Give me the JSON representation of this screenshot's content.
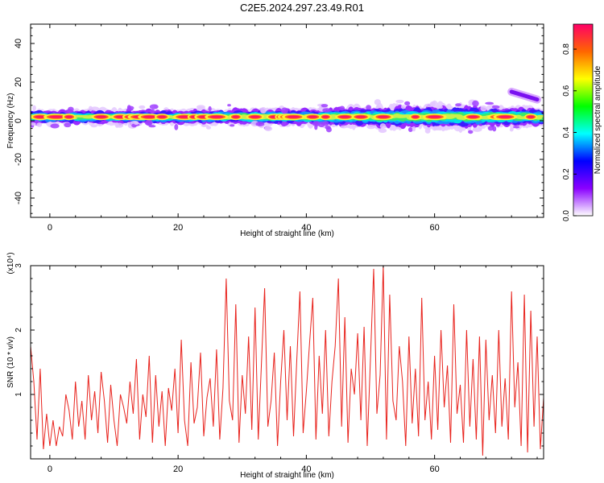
{
  "title": "C2E5.2024.297.23.49.R01",
  "chart_data": [
    {
      "type": "heatmap",
      "xlabel": "Height of straight line (km)",
      "ylabel": "Frequency (Hz)",
      "xlim": [
        -3,
        77
      ],
      "ylim": [
        -50,
        50
      ],
      "xticks": [
        0,
        20,
        40,
        60
      ],
      "yticks": [
        -40,
        -20,
        0,
        20,
        40
      ],
      "colorbar": {
        "label": "Normalized spectral amplitude",
        "range": [
          0.0,
          0.92
        ],
        "ticks": [
          "0.0",
          "0.2",
          "0.4",
          "0.6",
          "0.8"
        ],
        "colors": [
          "#ffffff",
          "#8a00ff",
          "#0000ff",
          "#00ffff",
          "#00ff00",
          "#ffff00",
          "#ff6600",
          "#ff0066"
        ]
      },
      "band": {
        "center_freq_hz": 2,
        "halfwidth_hz": [
          [
            -3,
            3
          ],
          [
            0,
            3
          ],
          [
            10,
            3
          ],
          [
            20,
            3
          ],
          [
            30,
            3.5
          ],
          [
            40,
            3.5
          ],
          [
            50,
            4.5
          ],
          [
            60,
            5
          ],
          [
            65,
            5
          ],
          [
            70,
            4
          ],
          [
            77,
            4
          ]
        ],
        "hotspots_km": [
          -1.5,
          1,
          3,
          8,
          11,
          12.5,
          14,
          15.5,
          17.5,
          21,
          22.5,
          24,
          26,
          29,
          32,
          35,
          36,
          37,
          38,
          41,
          43,
          46,
          48.5,
          52,
          57,
          60,
          66,
          70,
          71,
          75
        ],
        "upper_feature": {
          "x_km": [
            72,
            76
          ],
          "freq_hz": [
            15,
            11
          ]
        }
      }
    },
    {
      "type": "line",
      "xlabel": "Height of straight line (km)",
      "ylabel": "SNR (10 * v/v)",
      "yscale_label": "(x10⁴)",
      "xlim": [
        -3,
        77
      ],
      "ylim": [
        0,
        3
      ],
      "xticks": [
        0,
        20,
        40,
        60
      ],
      "yticks": [
        1,
        2,
        3
      ],
      "series": [
        {
          "color": "#e8221c",
          "x": [
            -3.0,
            -2.5,
            -2.0,
            -1.5,
            -1.0,
            -0.5,
            0.0,
            0.5,
            1.0,
            1.5,
            2.0,
            2.5,
            3.0,
            3.5,
            4.0,
            4.5,
            5.0,
            5.5,
            6.0,
            6.5,
            7.0,
            7.5,
            8.0,
            8.5,
            9.0,
            9.5,
            10.0,
            10.5,
            11.0,
            11.5,
            12.0,
            12.5,
            13.0,
            13.5,
            14.0,
            14.5,
            15.0,
            15.5,
            16.0,
            16.5,
            17.0,
            17.5,
            18.0,
            18.5,
            19.0,
            19.5,
            20.0,
            20.5,
            21.0,
            21.5,
            22.0,
            22.5,
            23.0,
            23.5,
            24.0,
            24.5,
            25.0,
            25.5,
            26.0,
            26.5,
            27.0,
            27.5,
            28.0,
            28.5,
            29.0,
            29.5,
            30.0,
            30.5,
            31.0,
            31.5,
            32.0,
            32.5,
            33.0,
            33.5,
            34.0,
            34.5,
            35.0,
            35.5,
            36.0,
            36.5,
            37.0,
            37.5,
            38.0,
            38.5,
            39.0,
            39.5,
            40.0,
            40.5,
            41.0,
            41.5,
            42.0,
            42.5,
            43.0,
            43.5,
            44.0,
            44.5,
            45.0,
            45.5,
            46.0,
            46.5,
            47.0,
            47.5,
            48.0,
            48.5,
            49.0,
            49.5,
            50.0,
            50.5,
            51.0,
            51.5,
            52.0,
            52.5,
            53.0,
            53.5,
            54.0,
            54.5,
            55.0,
            55.5,
            56.0,
            56.5,
            57.0,
            57.5,
            58.0,
            58.5,
            59.0,
            59.5,
            60.0,
            60.5,
            61.0,
            61.5,
            62.0,
            62.5,
            63.0,
            63.5,
            64.0,
            64.5,
            65.0,
            65.5,
            66.0,
            66.5,
            67.0,
            67.5,
            68.0,
            68.5,
            69.0,
            69.5,
            70.0,
            70.5,
            71.0,
            71.5,
            72.0,
            72.5,
            73.0,
            73.5,
            74.0,
            74.5,
            75.0,
            75.5,
            76.0,
            76.5,
            77.0
          ],
          "y": [
            1.75,
            1.2,
            0.3,
            1.4,
            0.15,
            0.7,
            0.2,
            0.6,
            0.2,
            0.5,
            0.35,
            1.0,
            0.75,
            0.3,
            1.2,
            0.5,
            0.9,
            0.3,
            1.3,
            0.6,
            1.05,
            0.4,
            1.35,
            0.9,
            0.25,
            1.15,
            0.6,
            0.2,
            1.0,
            0.8,
            0.55,
            1.2,
            0.7,
            1.55,
            0.3,
            1.0,
            0.65,
            1.6,
            0.25,
            1.3,
            0.5,
            1.05,
            0.2,
            1.1,
            0.75,
            1.4,
            0.4,
            1.85,
            0.6,
            0.2,
            1.5,
            0.55,
            0.8,
            1.65,
            0.35,
            0.95,
            1.25,
            0.5,
            1.7,
            0.3,
            1.1,
            2.8,
            0.9,
            0.6,
            2.4,
            0.25,
            1.3,
            0.7,
            1.9,
            0.45,
            2.35,
            0.3,
            1.5,
            2.65,
            0.5,
            0.9,
            1.65,
            0.2,
            1.2,
            2.0,
            0.6,
            1.75,
            0.35,
            1.5,
            2.6,
            0.4,
            1.05,
            1.8,
            2.5,
            0.3,
            1.6,
            0.7,
            2.0,
            0.35,
            1.2,
            1.75,
            2.8,
            0.5,
            2.2,
            0.25,
            1.4,
            1.0,
            1.95,
            0.6,
            2.05,
            0.2,
            1.55,
            2.95,
            0.7,
            1.3,
            3.0,
            0.3,
            2.55,
            0.9,
            0.6,
            1.75,
            1.2,
            0.2,
            1.9,
            0.55,
            1.4,
            0.35,
            2.5,
            0.6,
            1.2,
            0.3,
            1.6,
            0.45,
            2.0,
            0.8,
            1.45,
            0.25,
            2.4,
            0.7,
            1.15,
            0.25,
            2.0,
            0.5,
            1.55,
            0.3,
            1.9,
            0.05,
            1.85,
            0.6,
            1.3,
            0.4,
            2.0,
            0.5,
            1.25,
            0.3,
            2.6,
            0.8,
            1.5,
            0.2,
            2.55,
            0.1,
            2.3,
            0.5,
            1.9,
            0.15,
            0.95
          ]
        }
      ]
    }
  ]
}
